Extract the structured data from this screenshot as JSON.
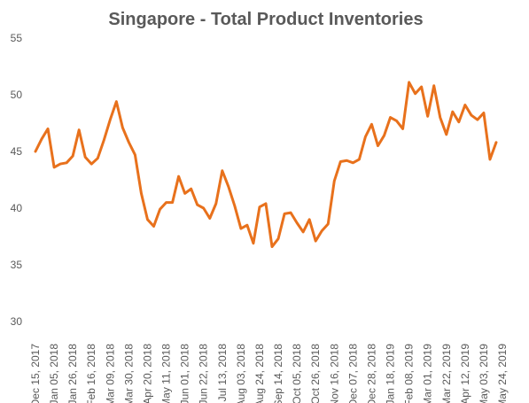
{
  "chart_data": {
    "type": "line",
    "title": "Singapore - Total Product Inventories",
    "categories": [
      "Dec 15, 2017",
      null,
      null,
      "Jan 05, 2018",
      null,
      null,
      "Jan 26, 2018",
      null,
      null,
      "Feb 16, 2018",
      null,
      null,
      "Mar 09, 2018",
      null,
      null,
      "Mar 30, 2018",
      null,
      null,
      "Apr 20, 2018",
      null,
      null,
      "May 11, 2018",
      null,
      null,
      "Jun 01, 2018",
      null,
      null,
      "Jun 22, 2018",
      null,
      null,
      "Jul 13, 2018",
      null,
      null,
      "Aug 03, 2018",
      null,
      null,
      "Aug 24, 2018",
      null,
      null,
      "Sep 14, 2018",
      null,
      null,
      "Oct 05, 2018",
      null,
      null,
      "Oct 26, 2018",
      null,
      null,
      "Nov 16, 2018",
      null,
      null,
      "Dec 07, 2018",
      null,
      null,
      "Dec 28, 2018",
      null,
      null,
      "Jan 18, 2019",
      null,
      null,
      "Feb 08, 2019",
      null,
      null,
      "Mar 01, 2019",
      null,
      null,
      "Mar 22, 2019",
      null,
      null,
      "Apr 12, 2019",
      null,
      null,
      "May 03, 2019",
      null,
      null,
      "May 24, 2019"
    ],
    "values": [
      45.0,
      46.1,
      47.0,
      43.6,
      43.9,
      44.0,
      44.6,
      46.9,
      44.5,
      43.9,
      44.4,
      46.0,
      47.8,
      49.4,
      47.1,
      45.8,
      44.7,
      41.3,
      39.0,
      38.4,
      39.9,
      40.5,
      40.5,
      42.8,
      41.3,
      41.7,
      40.3,
      40.0,
      39.1,
      40.4,
      43.3,
      41.9,
      40.2,
      38.2,
      38.5,
      36.9,
      40.1,
      40.4,
      36.6,
      37.3,
      39.5,
      39.6,
      38.7,
      37.9,
      39.0,
      37.1,
      38.0,
      38.6,
      42.4,
      44.1,
      44.2,
      44.0,
      44.3,
      46.3,
      47.4,
      45.5,
      46.4,
      48.0,
      47.7,
      47.0,
      51.1,
      50.1,
      50.7,
      48.1,
      50.8,
      48.0,
      46.5,
      48.5,
      47.6,
      49.1,
      48.2,
      47.8,
      48.4,
      44.3,
      45.8,
      null
    ],
    "color": "#e8711c",
    "ylim": [
      30,
      55
    ],
    "yticks": [
      30,
      35,
      40,
      45,
      50,
      55
    ],
    "grid": false
  }
}
